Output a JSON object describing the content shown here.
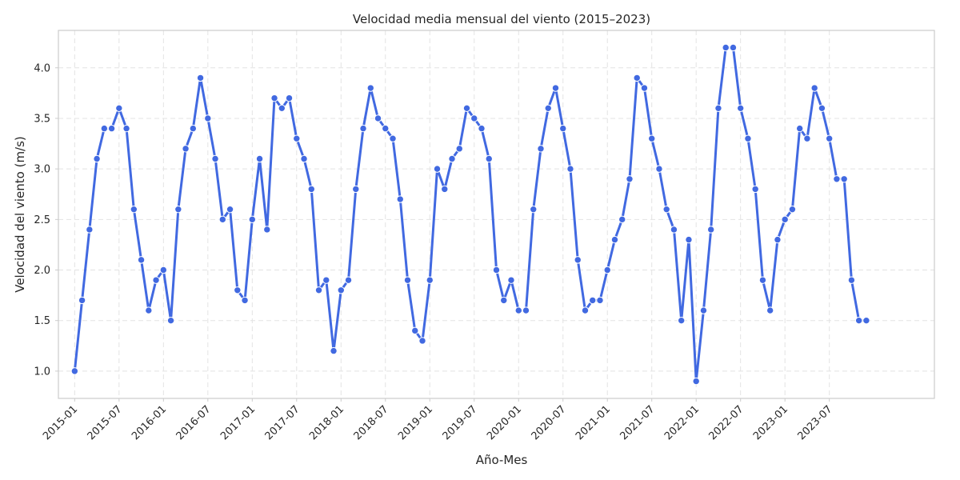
{
  "chart_data": {
    "type": "line",
    "title": "Velocidad media mensual del viento (2015–2023)",
    "xlabel": "Año-Mes",
    "ylabel": "Velocidad del viento (m/s)",
    "x_start": "2015-01",
    "x_tick_labels": [
      "2015-01",
      "2015-07",
      "2016-01",
      "2016-07",
      "2017-01",
      "2017-07",
      "2018-01",
      "2018-07",
      "2019-01",
      "2019-07",
      "2020-01",
      "2020-07",
      "2021-01",
      "2021-07",
      "2022-01",
      "2022-07",
      "2023-01",
      "2023-07"
    ],
    "y_ticks": [
      1.0,
      1.5,
      2.0,
      2.5,
      3.0,
      3.5,
      4.0
    ],
    "y_tick_labels": [
      "1.0",
      "1.5",
      "2.0",
      "2.5",
      "3.0",
      "3.5",
      "4.0"
    ],
    "ylim": [
      0.73,
      4.37
    ],
    "xlim_months": [
      -2.2,
      116.2
    ],
    "grid": true,
    "color": "#4169e1",
    "series": [
      {
        "values": [
          1.0,
          1.7,
          2.4,
          3.1,
          3.4,
          3.4,
          3.6,
          3.4,
          2.6,
          2.1,
          1.6,
          1.9,
          2.0,
          1.5,
          2.6,
          3.2,
          3.4,
          3.9,
          3.5,
          3.1,
          2.5,
          2.6,
          1.8,
          1.7,
          2.5,
          3.1,
          2.4,
          3.7,
          3.6,
          3.7,
          3.3,
          3.1,
          2.8,
          1.8,
          1.9,
          1.2,
          1.8,
          1.9,
          2.8,
          3.4,
          3.8,
          3.5,
          3.4,
          3.3,
          2.7,
          1.9,
          1.4,
          1.3,
          1.9,
          3.0,
          2.8,
          3.1,
          3.2,
          3.6,
          3.5,
          3.4,
          3.1,
          2.0,
          1.7,
          1.9,
          1.6,
          1.6,
          2.6,
          3.2,
          3.6,
          3.8,
          3.4,
          3.0,
          2.1,
          1.6,
          1.7,
          1.7,
          2.0,
          2.3,
          2.5,
          2.9,
          3.9,
          3.8,
          3.3,
          3.0,
          2.6,
          2.4,
          1.5,
          2.3,
          0.9,
          1.6,
          2.4,
          3.6,
          4.2,
          4.2,
          3.6,
          3.3,
          2.8,
          1.9,
          1.6,
          2.3,
          2.5,
          2.6,
          3.4,
          3.3,
          3.8,
          3.6,
          3.3,
          2.9,
          2.9,
          1.9,
          1.5,
          1.5
        ]
      }
    ]
  }
}
